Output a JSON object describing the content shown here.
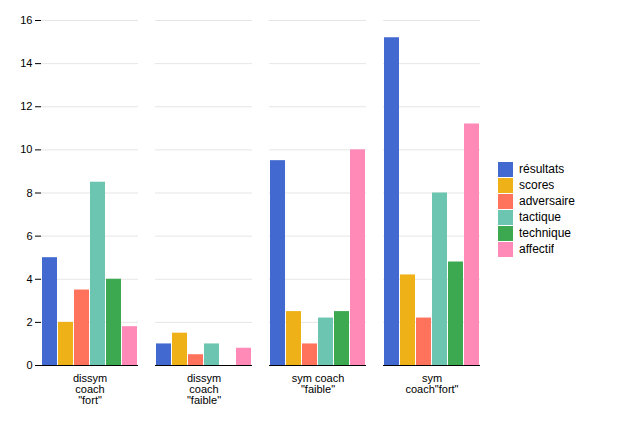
{
  "chart_data": {
    "type": "bar",
    "categories": [
      "dissym\ncoach\n\"fort\"",
      "dissym\ncoach\n\"faible\"",
      "sym coach\n\"faible\"",
      "sym\ncoach\"fort\""
    ],
    "series": [
      {
        "name": "résultats",
        "values": [
          5,
          1,
          9.5,
          15.2
        ]
      },
      {
        "name": "scores",
        "values": [
          2,
          1.5,
          2.5,
          4.2
        ]
      },
      {
        "name": "adversaire",
        "values": [
          3.5,
          0.5,
          1,
          2.2
        ]
      },
      {
        "name": "tactique",
        "values": [
          8.5,
          1,
          2.2,
          8
        ]
      },
      {
        "name": "technique",
        "values": [
          4,
          0,
          2.5,
          4.8
        ]
      },
      {
        "name": "affectif",
        "values": [
          1.8,
          0.8,
          10,
          11.2
        ]
      }
    ],
    "ylim": [
      0,
      16
    ],
    "yticks": [
      0,
      2,
      4,
      6,
      8,
      10,
      12,
      14,
      16
    ],
    "grid": true,
    "legend": "right"
  }
}
